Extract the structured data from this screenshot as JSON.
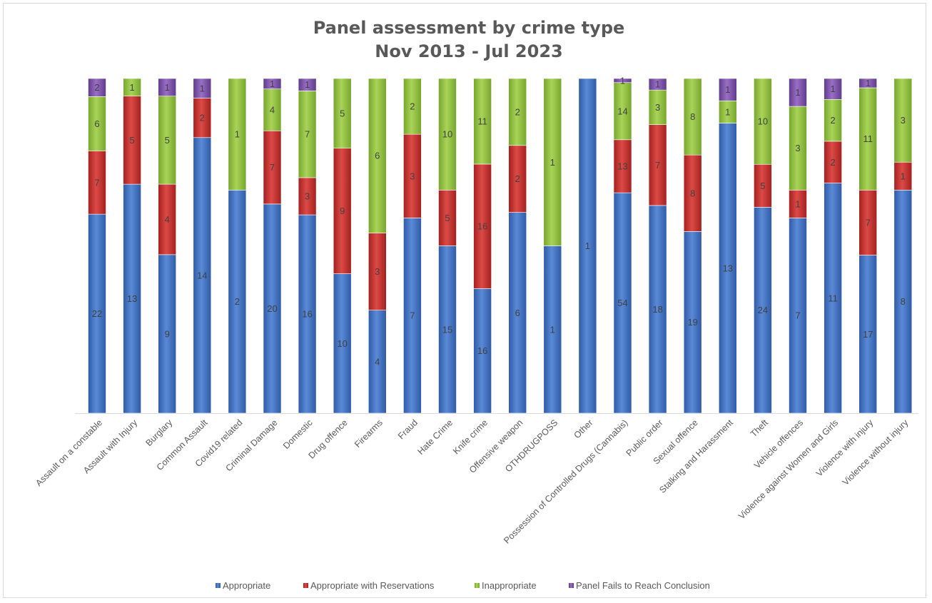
{
  "chart_data": {
    "type": "bar",
    "stacked": "percent",
    "title": "Panel assessment by crime type",
    "subtitle": "Nov 2013 - Jul 2023",
    "xlabel": "",
    "ylabel": "",
    "ylim": [
      0,
      100
    ],
    "grid": false,
    "legend_position": "bottom",
    "categories": [
      "Assault on a constable",
      "Assault with Injury",
      "Burglary",
      "Common Assault",
      "Covid19 related",
      "Criminal Damage",
      "Domestic",
      "Drug offence",
      "Firearms",
      "Fraud",
      "Hate Crime",
      "Knife crime",
      "Offensive weapon",
      "OTHDRUGPOSS",
      "Other",
      "Possession of Controlled Drugs (Cannabis)",
      "Public order",
      "Sexual offence",
      "Stalking and Harassment",
      "Theft",
      "Vehicle offences",
      "Violence against Women and Girls",
      "Violence with injury",
      "Violence without injury"
    ],
    "series": [
      {
        "name": "Appropriate",
        "color": "#4472c4",
        "values": [
          22,
          13,
          9,
          14,
          2,
          20,
          16,
          10,
          4,
          7,
          15,
          16,
          6,
          1,
          1,
          54,
          18,
          19,
          13,
          24,
          7,
          11,
          17,
          8
        ]
      },
      {
        "name": "Appropriate with Reservations",
        "color": "#c0312f",
        "values": [
          7,
          5,
          4,
          2,
          0,
          7,
          3,
          9,
          3,
          3,
          5,
          16,
          2,
          0,
          0,
          13,
          7,
          8,
          0,
          5,
          1,
          2,
          7,
          1
        ]
      },
      {
        "name": "Inappropriate",
        "color": "#92c13f",
        "values": [
          6,
          1,
          5,
          0,
          1,
          4,
          7,
          5,
          6,
          2,
          10,
          11,
          2,
          1,
          0,
          14,
          3,
          8,
          1,
          10,
          3,
          2,
          11,
          3
        ]
      },
      {
        "name": "Panel Fails to Reach Conclusion",
        "color": "#7d52a8",
        "values": [
          2,
          0,
          1,
          1,
          0,
          1,
          1,
          0,
          0,
          0,
          0,
          0,
          0,
          0,
          0,
          1,
          1,
          0,
          1,
          0,
          1,
          1,
          1,
          0
        ]
      }
    ]
  }
}
